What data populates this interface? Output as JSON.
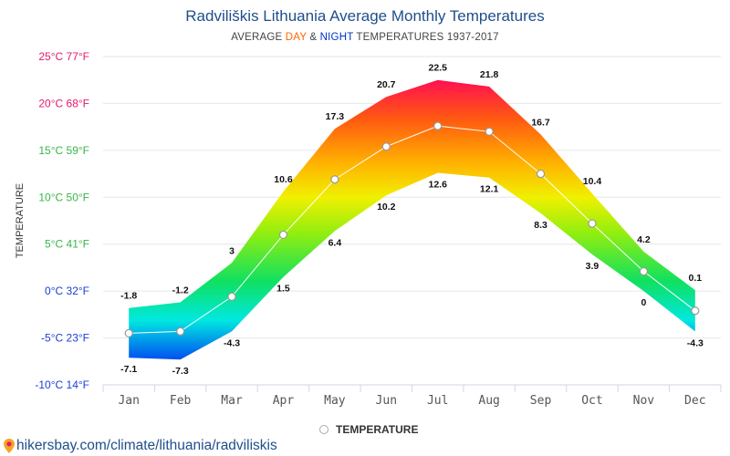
{
  "page": {
    "title": "Radviliškis Lithuania Average Monthly Temperatures",
    "subtitle": {
      "prefix": "AVERAGE ",
      "day": "DAY",
      "amp": " & ",
      "night": "NIGHT",
      "suffix": " TEMPERATURES 1937-2017"
    },
    "footer_url": "hikersbay.com/climate/lithuania/radviliskis",
    "footer_icon": "map-pin-icon",
    "colors": {
      "day": "#ff6600",
      "night": "#0033cc",
      "title": "#1f4e8c"
    }
  },
  "chart_data": {
    "type": "area",
    "title": "Radviliškis Lithuania Average Monthly Temperatures",
    "ylabel": "TEMPERATURE",
    "ylim": [
      -10,
      25
    ],
    "grid": true,
    "legend_position": "bottom-center",
    "y_ticks": [
      {
        "value": 25,
        "label": "25°C 77°F",
        "color": "#e8186d"
      },
      {
        "value": 20,
        "label": "20°C 68°F",
        "color": "#e8186d"
      },
      {
        "value": 15,
        "label": "15°C 59°F",
        "color": "#39b54a"
      },
      {
        "value": 10,
        "label": "10°C 50°F",
        "color": "#39b54a"
      },
      {
        "value": 5,
        "label": "5°C 41°F",
        "color": "#39b54a"
      },
      {
        "value": 0,
        "label": "0°C 32°F",
        "color": "#1a3fd6"
      },
      {
        "value": -5,
        "label": "-5°C 23°F",
        "color": "#1a3fd6"
      },
      {
        "value": -10,
        "label": "-10°C 14°F",
        "color": "#1a3fd6"
      }
    ],
    "categories": [
      "Jan",
      "Feb",
      "Mar",
      "Apr",
      "May",
      "Jun",
      "Jul",
      "Aug",
      "Sep",
      "Oct",
      "Nov",
      "Dec"
    ],
    "series": [
      {
        "name": "",
        "role": "day",
        "values": [
          -1.8,
          -1.2,
          3,
          10.6,
          17.3,
          20.7,
          22.5,
          21.8,
          16.7,
          10.4,
          4.2,
          0.1
        ]
      },
      {
        "name": "",
        "role": "night",
        "values": [
          -7.1,
          -7.3,
          -4.3,
          1.5,
          6.4,
          10.2,
          12.6,
          12.1,
          8.3,
          3.9,
          0,
          -4.3
        ]
      },
      {
        "name": "TEMPERATURE",
        "role": "mean",
        "values": [
          -4.5,
          -4.3,
          -0.6,
          6.0,
          11.9,
          15.4,
          17.6,
          17.0,
          12.5,
          7.2,
          2.1,
          -2.1
        ]
      }
    ],
    "legend": [
      "TEMPERATURE"
    ]
  }
}
